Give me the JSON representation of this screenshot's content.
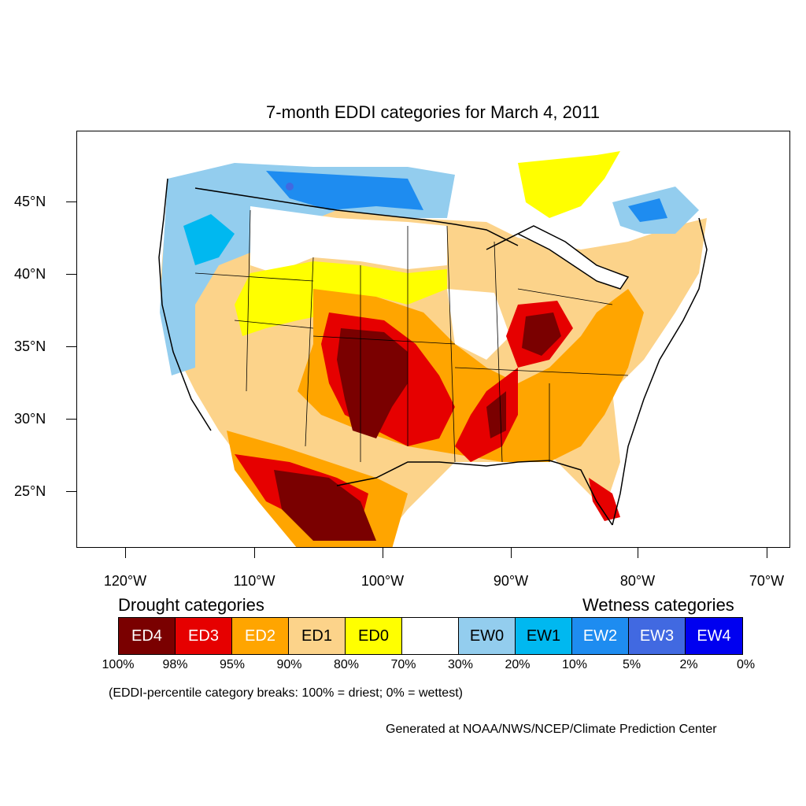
{
  "title": "7-month EDDI categories for March 4, 2011",
  "y_axis_labels": [
    "45°N",
    "40°N",
    "35°N",
    "30°N",
    "25°N"
  ],
  "x_axis_labels": [
    "120°W",
    "110°W",
    "100°W",
    "90°W",
    "80°W",
    "70°W"
  ],
  "legend": {
    "drought_heading": "Drought categories",
    "wetness_heading": "Wetness categories",
    "categories": [
      {
        "label": "ED4",
        "color": "#7a0000",
        "text_color": "#ffffff"
      },
      {
        "label": "ED3",
        "color": "#e60000",
        "text_color": "#ffffff"
      },
      {
        "label": "ED2",
        "color": "#ffa500",
        "text_color": "#ffffff"
      },
      {
        "label": "ED1",
        "color": "#fcd38a",
        "text_color": "#000000"
      },
      {
        "label": "ED0",
        "color": "#ffff00",
        "text_color": "#000000"
      },
      {
        "label": "",
        "color": "#ffffff",
        "text_color": "#000000"
      },
      {
        "label": "EW0",
        "color": "#93cdee",
        "text_color": "#000000"
      },
      {
        "label": "EW1",
        "color": "#00b8f0",
        "text_color": "#000000"
      },
      {
        "label": "EW2",
        "color": "#1e8cf0",
        "text_color": "#ffffff"
      },
      {
        "label": "EW3",
        "color": "#4169e1",
        "text_color": "#ffffff"
      },
      {
        "label": "EW4",
        "color": "#0000f0",
        "text_color": "#ffffff"
      }
    ],
    "percentiles": [
      "100%",
      "98%",
      "95%",
      "90%",
      "80%",
      "70%",
      "30%",
      "20%",
      "10%",
      "5%",
      "2%",
      "0%"
    ]
  },
  "note": "(EDDI-percentile category breaks: 100% = driest; 0% = wettest)",
  "credit": "Generated at NOAA/NWS/NCEP/Climate Prediction Center"
}
